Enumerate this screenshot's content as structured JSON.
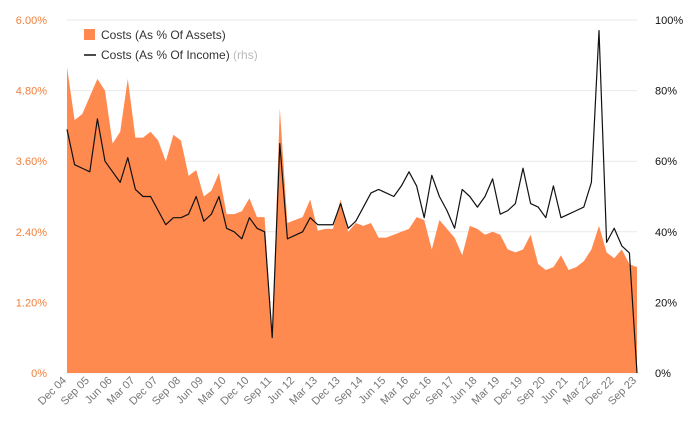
{
  "chart_data": {
    "type": "area",
    "categories": [
      "Dec 04",
      "Mar 05",
      "Jun 05",
      "Sep 05",
      "Dec 05",
      "Mar 06",
      "Jun 06",
      "Sep 06",
      "Dec 06",
      "Mar 07",
      "Jun 07",
      "Sep 07",
      "Dec 07",
      "Mar 08",
      "Jun 08",
      "Sep 08",
      "Dec 08",
      "Mar 09",
      "Jun 09",
      "Sep 09",
      "Dec 09",
      "Mar 10",
      "Jun 10",
      "Sep 10",
      "Dec 10",
      "Mar 11",
      "Jun 11",
      "Sep 11",
      "Dec 11",
      "Mar 12",
      "Jun 12",
      "Sep 12",
      "Dec 12",
      "Mar 13",
      "Jun 13",
      "Sep 13",
      "Dec 13",
      "Mar 14",
      "Jun 14",
      "Sep 14",
      "Dec 14",
      "Mar 15",
      "Jun 15",
      "Sep 15",
      "Dec 15",
      "Mar 16",
      "Jun 16",
      "Sep 16",
      "Dec 16",
      "Mar 17",
      "Jun 17",
      "Sep 17",
      "Dec 17",
      "Mar 18",
      "Jun 18",
      "Sep 18",
      "Dec 18",
      "Mar 19",
      "Jun 19",
      "Sep 19",
      "Dec 19",
      "Mar 20",
      "Jun 20",
      "Sep 20",
      "Dec 20",
      "Mar 21",
      "Jun 21",
      "Sep 21",
      "Dec 21",
      "Mar 22",
      "Jun 22",
      "Sep 22",
      "Dec 22",
      "Mar 23",
      "Jun 23",
      "Sep 23"
    ],
    "x_tick_labels": [
      "Dec 04",
      "Sep 05",
      "Jun 06",
      "Mar 07",
      "Dec 07",
      "Sep 08",
      "Jun 09",
      "Mar 10",
      "Dec 10",
      "Sep 11",
      "Jun 12",
      "Mar 13",
      "Dec 13",
      "Sep 14",
      "Jun 15",
      "Mar 16",
      "Dec 16",
      "Sep 17",
      "Jun 18",
      "Mar 19",
      "Dec 19",
      "Sep 20",
      "Jun 21",
      "Mar 22",
      "Dec 22",
      "Sep 23"
    ],
    "series": [
      {
        "name": "Costs (As % Of Assets)",
        "type": "area",
        "axis": "left",
        "color": "#ff8a50",
        "values": [
          5.2,
          4.3,
          4.4,
          4.7,
          5.0,
          4.8,
          3.9,
          4.1,
          5.0,
          4.0,
          4.0,
          4.1,
          3.95,
          3.6,
          4.05,
          3.95,
          3.35,
          3.45,
          3.0,
          3.1,
          3.4,
          2.7,
          2.7,
          2.75,
          2.97,
          2.65,
          2.65,
          0.6,
          4.5,
          2.55,
          2.6,
          2.65,
          2.95,
          2.42,
          2.45,
          2.45,
          2.95,
          2.4,
          2.55,
          2.5,
          2.55,
          2.3,
          2.3,
          2.35,
          2.4,
          2.45,
          2.65,
          2.6,
          2.1,
          2.6,
          2.45,
          2.3,
          2.0,
          2.5,
          2.45,
          2.35,
          2.4,
          2.35,
          2.1,
          2.05,
          2.1,
          2.35,
          1.85,
          1.75,
          1.8,
          2.0,
          1.75,
          1.8,
          1.9,
          2.1,
          2.5,
          2.05,
          1.95,
          2.1,
          1.85,
          1.8
        ]
      },
      {
        "name": "Costs (As % Of Income)",
        "type": "line",
        "axis": "right",
        "color": "#111111",
        "values": [
          69,
          59,
          58,
          57,
          72,
          60,
          57,
          54,
          61,
          52,
          50,
          50,
          46,
          42,
          44,
          44,
          45,
          50,
          43,
          45,
          50,
          41,
          40,
          38,
          44,
          41,
          40,
          10,
          65,
          38,
          39,
          40,
          44,
          42,
          42,
          42,
          48,
          41,
          43,
          47,
          51,
          52,
          51,
          50,
          53,
          57,
          53,
          44,
          56,
          50,
          46,
          41,
          52,
          50,
          47,
          50,
          55,
          45,
          46,
          48,
          58,
          48,
          47,
          44,
          53,
          44,
          45,
          46,
          47,
          54,
          97,
          37,
          41,
          36,
          34,
          0
        ]
      }
    ],
    "legend": {
      "position": "top-left",
      "items": [
        {
          "label": "Costs (As % Of Assets)",
          "suffix": ""
        },
        {
          "label": "Costs (As % Of Income)",
          "suffix": "(rhs)"
        }
      ]
    },
    "y_left": {
      "ylim": [
        0,
        6.0
      ],
      "ticks": [
        0,
        1.2,
        2.4,
        3.6,
        4.8,
        6.0
      ],
      "tick_labels": [
        "0%",
        "1.20%",
        "2.40%",
        "3.60%",
        "4.80%",
        "6.00%"
      ],
      "color": "#f07f3c"
    },
    "y_right": {
      "ylim": [
        0,
        100
      ],
      "ticks": [
        0,
        20,
        40,
        60,
        80,
        100
      ],
      "tick_labels": [
        "0%",
        "20%",
        "40%",
        "60%",
        "80%",
        "100%"
      ],
      "color": "#111111"
    },
    "grid": true
  }
}
